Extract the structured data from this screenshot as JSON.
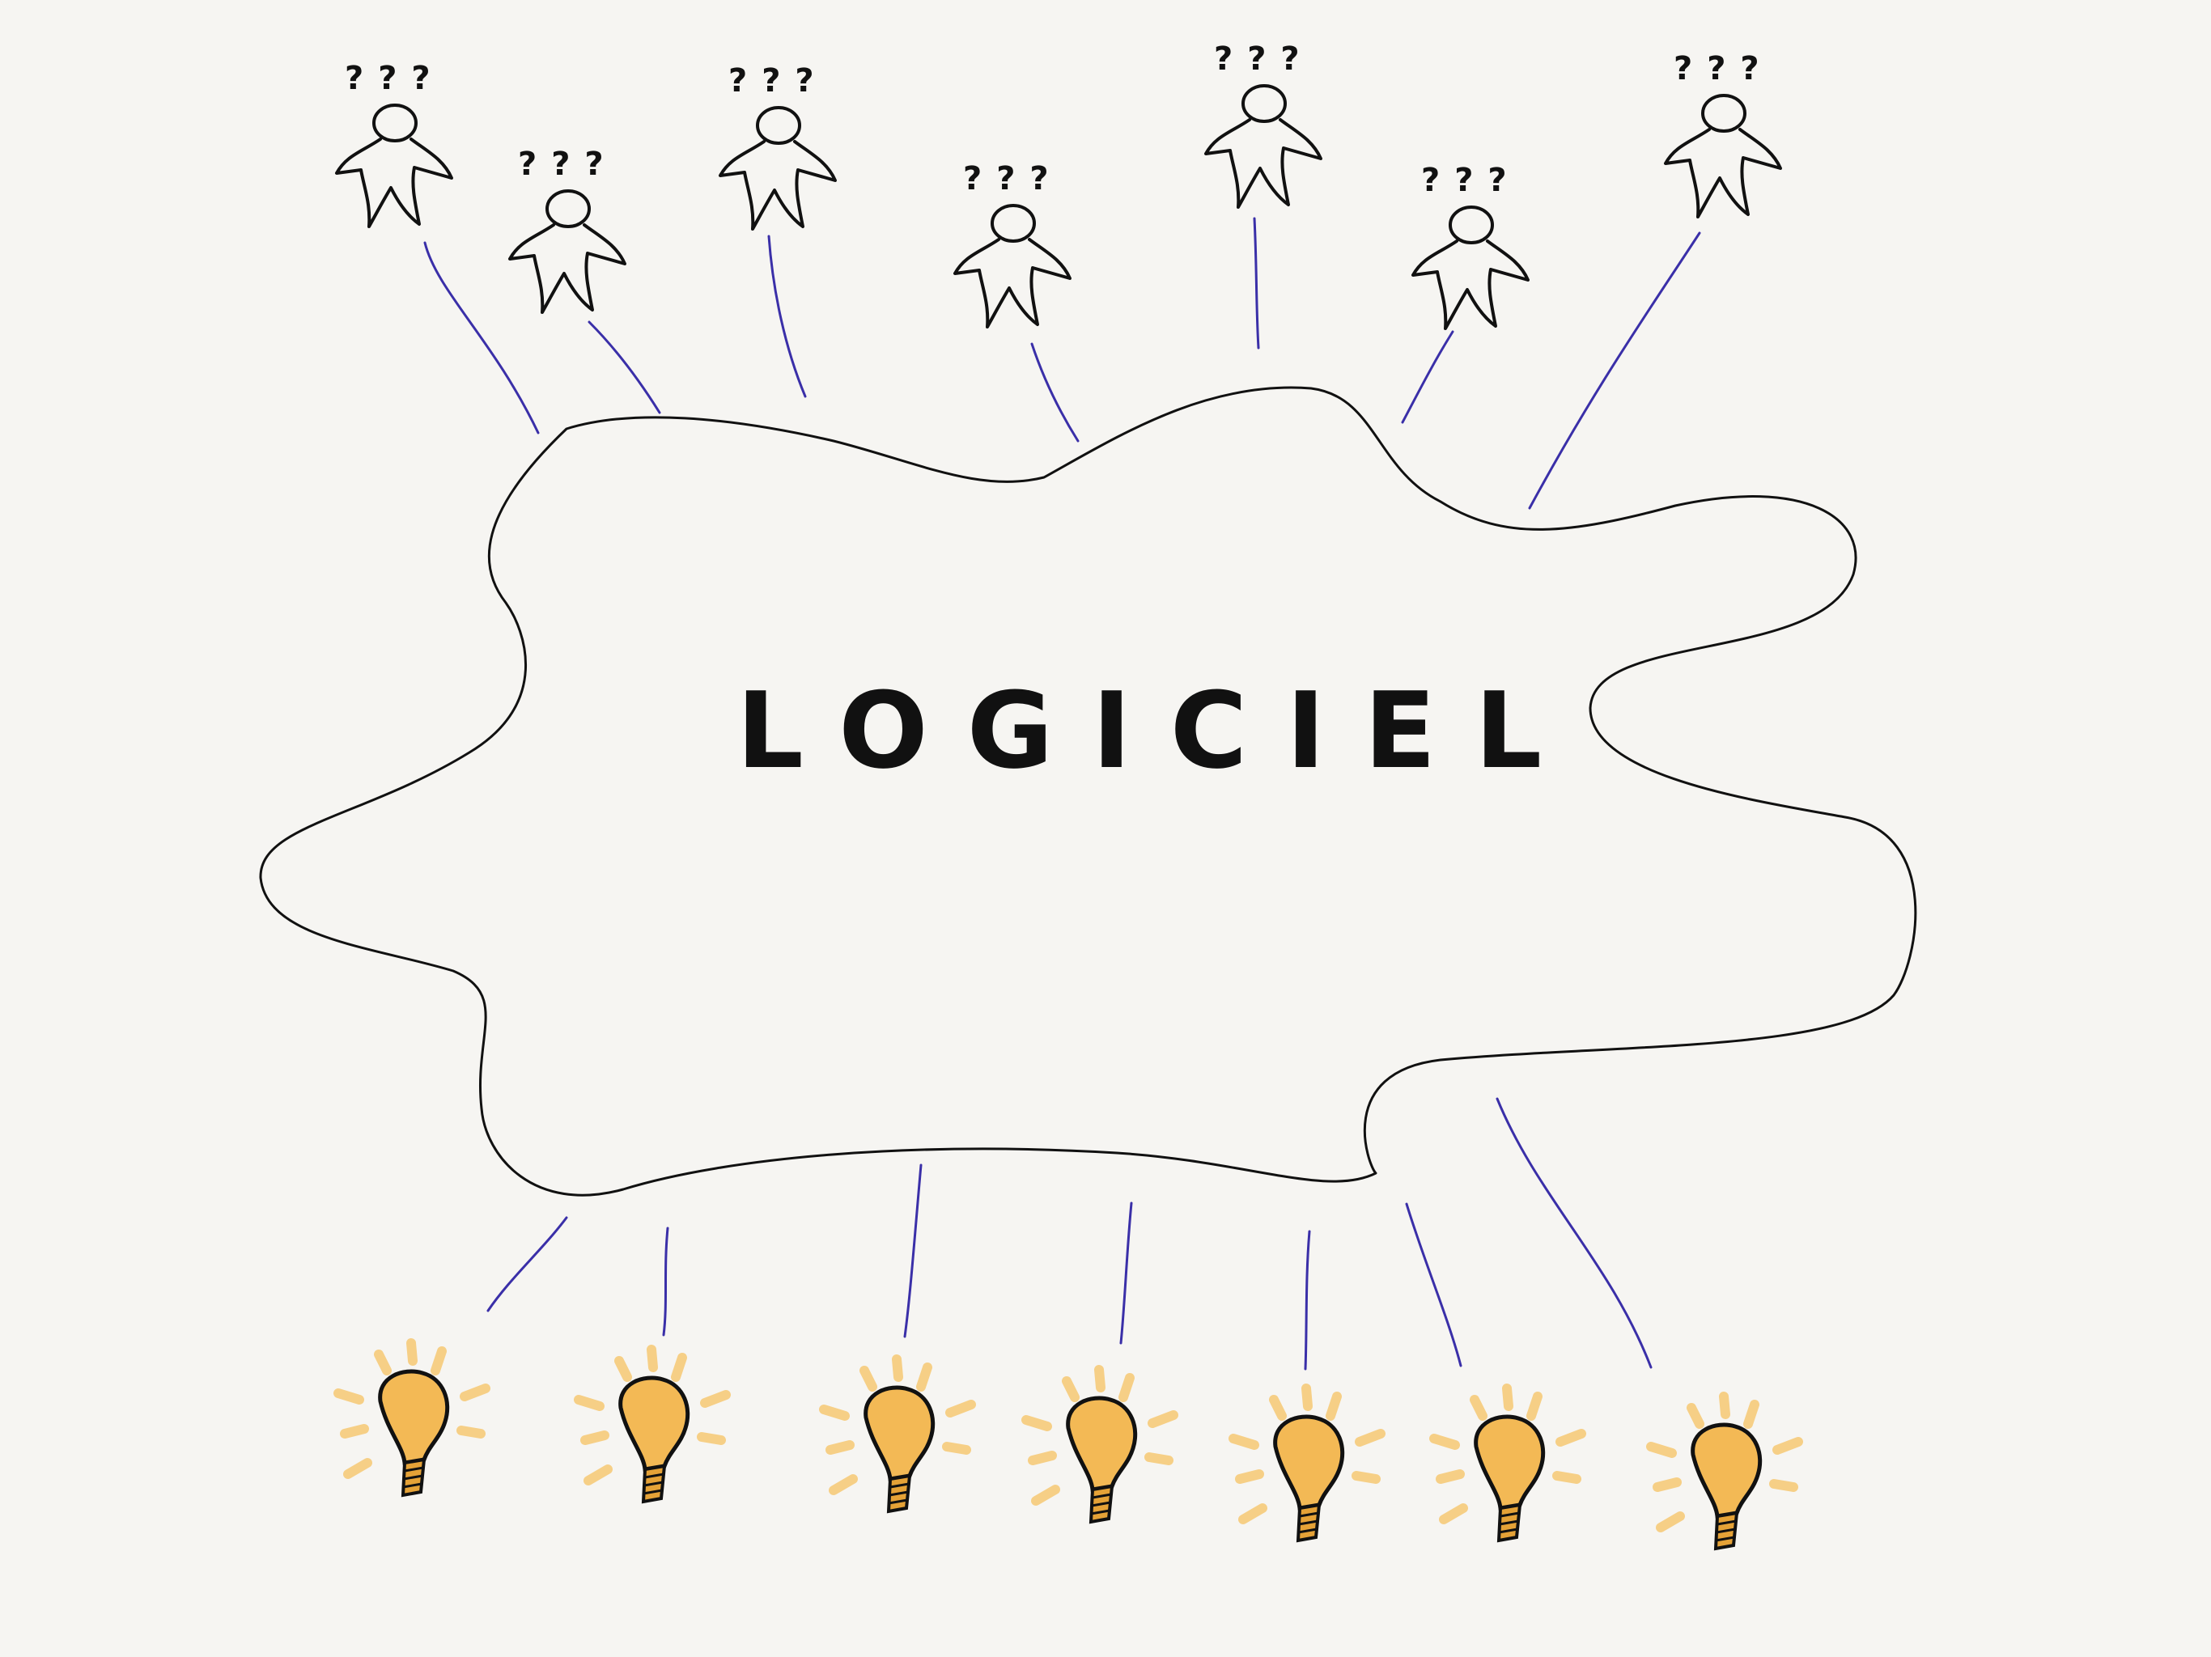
{
  "diagram": {
    "center_label": "LOGICIEL",
    "users": [
      {
        "id": "user-1",
        "marks": "???"
      },
      {
        "id": "user-2",
        "marks": "???"
      },
      {
        "id": "user-3",
        "marks": "???"
      },
      {
        "id": "user-4",
        "marks": "???"
      },
      {
        "id": "user-5",
        "marks": "???"
      },
      {
        "id": "user-6",
        "marks": "???"
      },
      {
        "id": "user-7",
        "marks": "???"
      }
    ],
    "ideas_count": 7,
    "colors": {
      "background": "#f6f5f2",
      "outline": "#111111",
      "connector": "#3a2fa8",
      "bulb": "#f3b955",
      "glow": "#f6cf86"
    }
  }
}
